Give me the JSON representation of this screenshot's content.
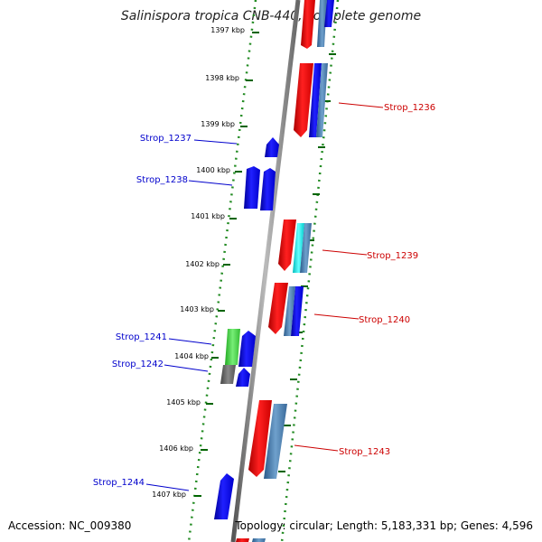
{
  "title": "Salinispora tropica CNB-440, complete genome",
  "footer": {
    "accession": "Accession: NC_009380",
    "topology": "Topology: circular; Length: 5,183,331 bp; Genes: 4,596"
  },
  "ticks": [
    "1397 kbp",
    "1398 kbp",
    "1399 kbp",
    "1400 kbp",
    "1401 kbp",
    "1402 kbp",
    "1403 kbp",
    "1404 kbp",
    "1405 kbp",
    "1406 kbp",
    "1407 kbp"
  ],
  "genes_left": [
    "Strop_1237",
    "Strop_1238",
    "Strop_1241",
    "Strop_1242",
    "Strop_1244"
  ],
  "genes_right": [
    "Strop_1236",
    "Strop_1239",
    "Strop_1240",
    "Strop_1243"
  ],
  "colors": {
    "forward_label": "#0000cc",
    "reverse_label": "#cc0000",
    "tick_ring": "#228b22",
    "backbone": "#888888"
  }
}
